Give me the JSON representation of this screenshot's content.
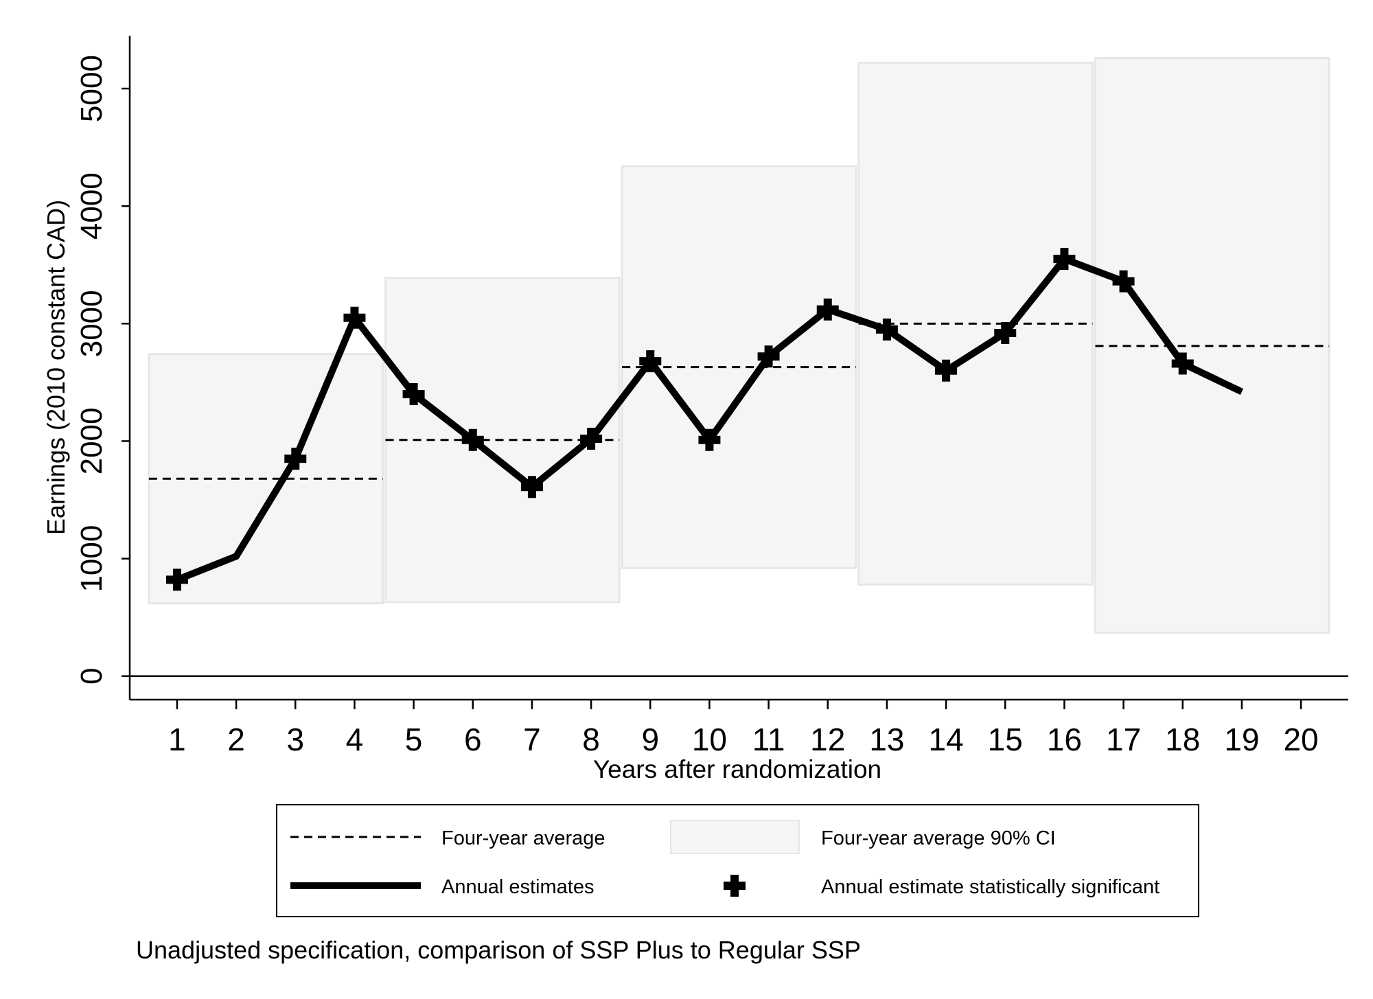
{
  "chart_data": {
    "type": "line",
    "title": "",
    "note": "Unadjusted specification, comparison of SSP Plus to Regular SSP",
    "xlabel": "Years after randomization",
    "ylabel": "Earnings (2010 constant CAD)",
    "xlim": [
      0.2,
      20.8
    ],
    "ylim": [
      -200,
      5450
    ],
    "x_ticks": [
      "1",
      "2",
      "3",
      "4",
      "5",
      "6",
      "7",
      "8",
      "9",
      "10",
      "11",
      "12",
      "13",
      "14",
      "15",
      "16",
      "17",
      "18",
      "19",
      "20"
    ],
    "y_ticks": [
      "0",
      "1000",
      "2000",
      "3000",
      "4000",
      "5000"
    ],
    "annual_estimates": {
      "name": "Annual estimates",
      "x": [
        1,
        2,
        3,
        4,
        5,
        6,
        7,
        8,
        9,
        10,
        11,
        12,
        13,
        14,
        15,
        16,
        17,
        18,
        19
      ],
      "y": [
        820,
        1020,
        1850,
        3050,
        2400,
        2010,
        1610,
        2020,
        2680,
        2010,
        2720,
        3120,
        2950,
        2600,
        2920,
        3550,
        3360,
        2660,
        2420
      ],
      "significant": [
        true,
        false,
        true,
        true,
        true,
        true,
        true,
        true,
        true,
        true,
        true,
        true,
        true,
        true,
        true,
        true,
        true,
        true,
        false
      ]
    },
    "four_year_average": {
      "name": "Four-year average",
      "periods": [
        {
          "x_start": 0.5,
          "x_end": 4.5,
          "mean": 1680,
          "ci_low": 620,
          "ci_high": 2740
        },
        {
          "x_start": 4.5,
          "x_end": 8.5,
          "mean": 2010,
          "ci_low": 630,
          "ci_high": 3390
        },
        {
          "x_start": 8.5,
          "x_end": 12.5,
          "mean": 2630,
          "ci_low": 920,
          "ci_high": 4340
        },
        {
          "x_start": 12.5,
          "x_end": 16.5,
          "mean": 3000,
          "ci_low": 780,
          "ci_high": 5220
        },
        {
          "x_start": 16.5,
          "x_end": 20.5,
          "mean": 2810,
          "ci_low": 370,
          "ci_high": 5260
        }
      ]
    },
    "legend": {
      "placement": "bottom",
      "items": [
        "Four-year average",
        "Four-year average 90% CI",
        "Annual estimates",
        "Annual estimate statistically significant"
      ]
    },
    "colors": {
      "line": "#000000",
      "ci_fill": "#f5f5f5",
      "ci_stroke": "#e6e6e6"
    }
  }
}
